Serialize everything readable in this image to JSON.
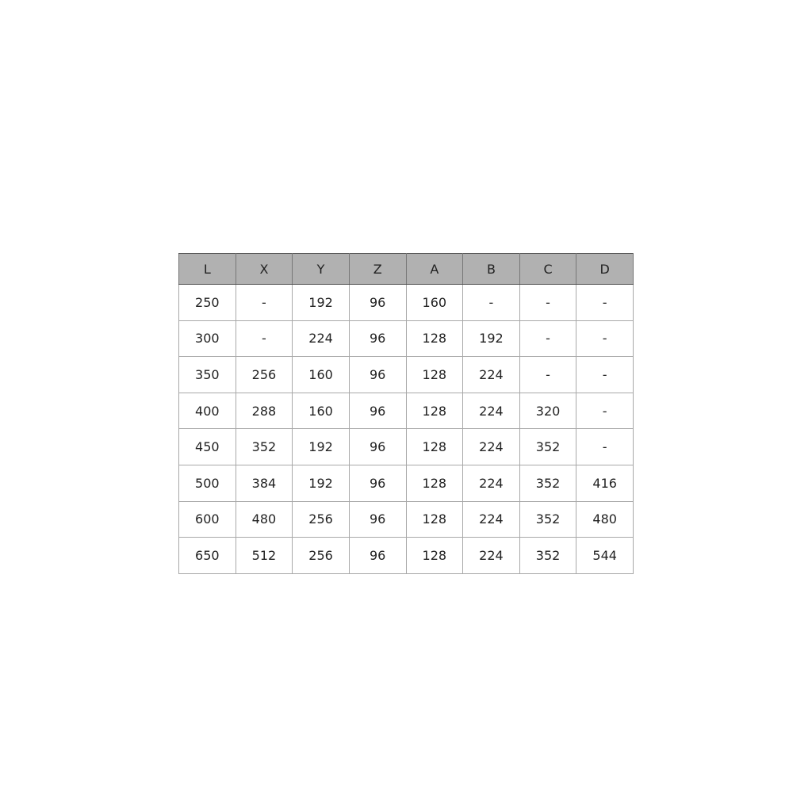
{
  "table": {
    "headers": [
      "L",
      "X",
      "Y",
      "Z",
      "A",
      "B",
      "C",
      "D"
    ],
    "rows": [
      [
        "250",
        "-",
        "192",
        "96",
        "160",
        "-",
        "-",
        "-"
      ],
      [
        "300",
        "-",
        "224",
        "96",
        "128",
        "192",
        "-",
        "-"
      ],
      [
        "350",
        "256",
        "160",
        "96",
        "128",
        "224",
        "-",
        "-"
      ],
      [
        "400",
        "288",
        "160",
        "96",
        "128",
        "224",
        "320",
        "-"
      ],
      [
        "450",
        "352",
        "192",
        "96",
        "128",
        "224",
        "352",
        "-"
      ],
      [
        "500",
        "384",
        "192",
        "96",
        "128",
        "224",
        "352",
        "416"
      ],
      [
        "600",
        "480",
        "256",
        "96",
        "128",
        "224",
        "352",
        "480"
      ],
      [
        "650",
        "512",
        "256",
        "96",
        "128",
        "224",
        "352",
        "544"
      ]
    ],
    "header_bg": "#b1b1b1"
  }
}
